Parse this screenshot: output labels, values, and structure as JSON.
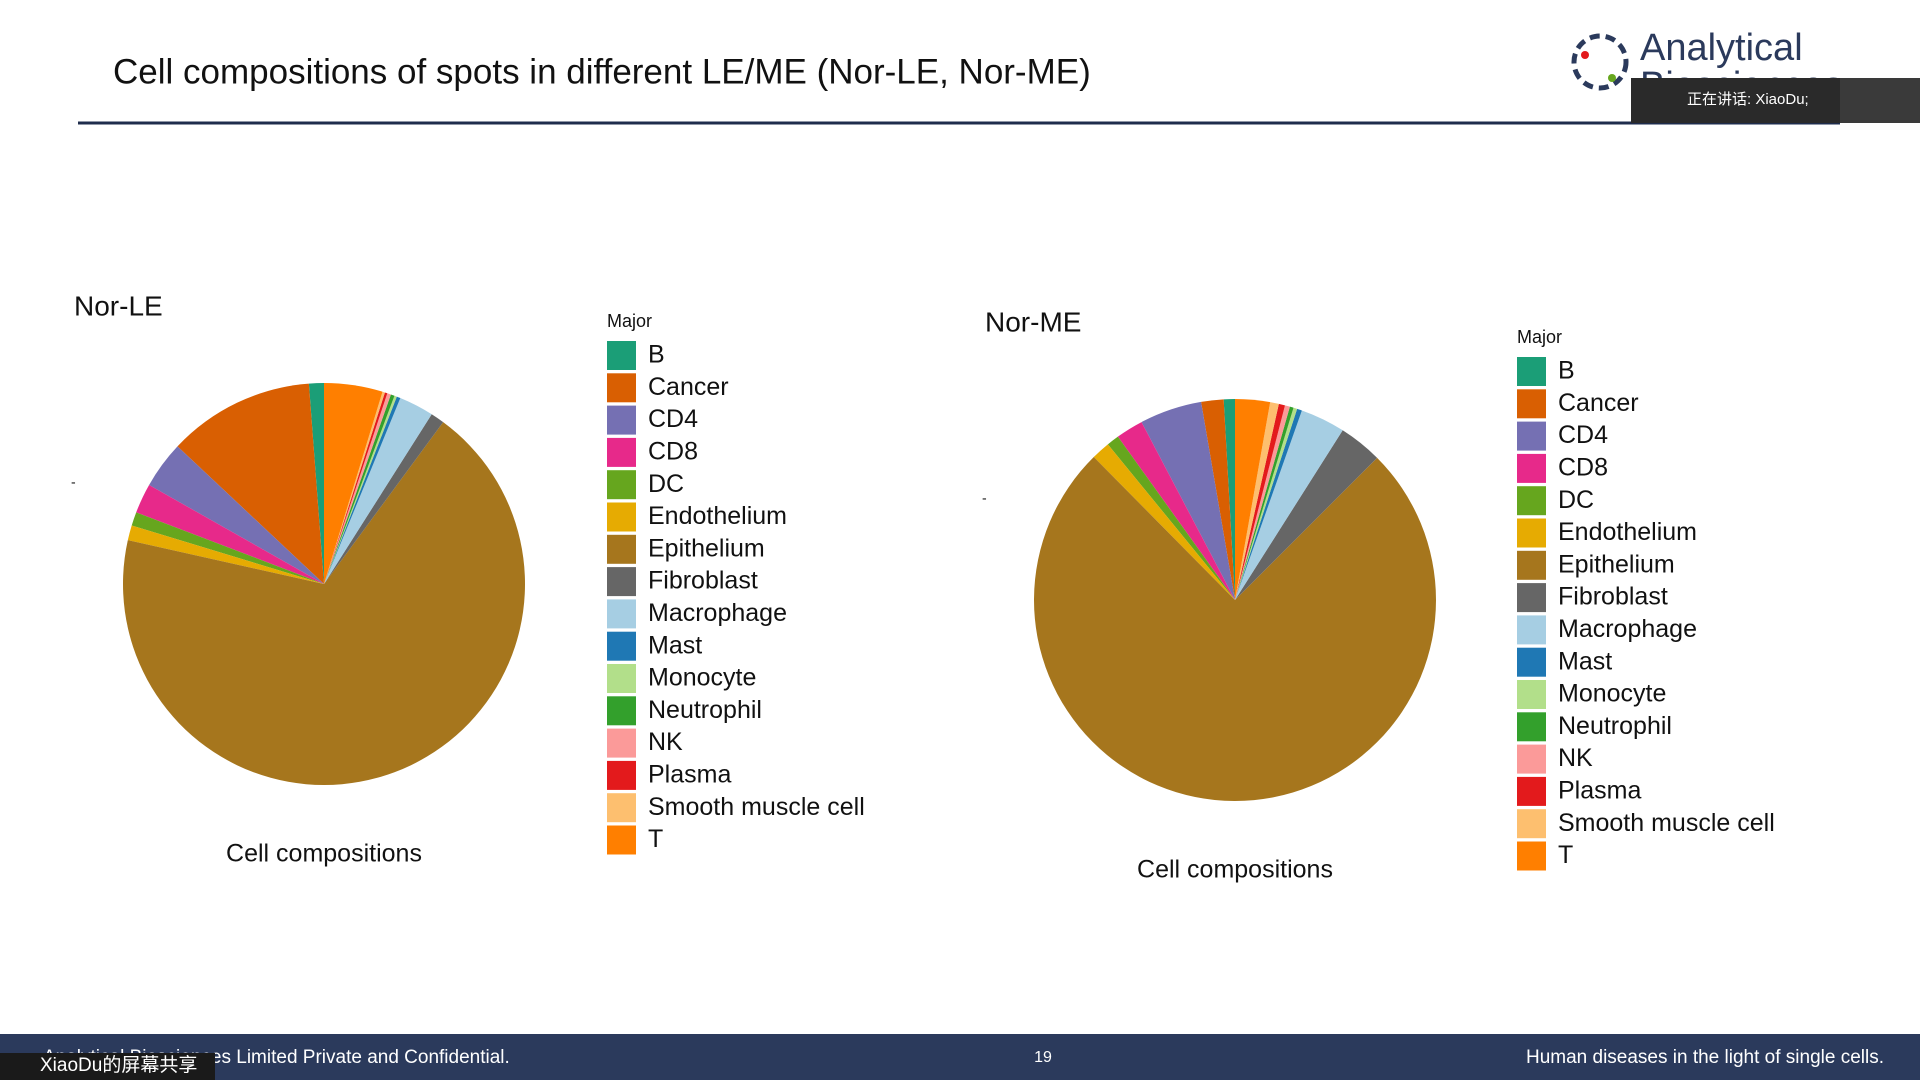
{
  "slide": {
    "title": "Cell compositions of spots in different LE/ME (Nor-LE, Nor-ME)",
    "logo": [
      "Analytical",
      "Biosciences"
    ],
    "speaking": "正在讲话: XiaoDu;",
    "footer_left": "Analytical Biosciences Limited Private and Confidential.",
    "page": "19",
    "footer_right": "Human diseases in the light of single cells.",
    "share_badge": "XiaoDu的屏幕共享"
  },
  "chart_data": [
    {
      "type": "pie",
      "title": "Nor-LE",
      "xlabel": "Cell compositions",
      "ylabel": "-",
      "legend_title": "Major",
      "categories": [
        "B",
        "Cancer",
        "CD4",
        "CD8",
        "DC",
        "Endothelium",
        "Epithelium",
        "Fibroblast",
        "Macrophage",
        "Mast",
        "Monocyte",
        "Neutrophil",
        "NK",
        "Plasma",
        "Smooth muscle cell",
        "T"
      ],
      "values": [
        1.2,
        11.8,
        3.8,
        2.4,
        1.1,
        1.2,
        68.4,
        1.1,
        2.8,
        0.3,
        0.2,
        0.3,
        0.3,
        0.2,
        0.2,
        4.7
      ],
      "colors": [
        "#1b9e77",
        "#d95f02",
        "#7570b3",
        "#e7298a",
        "#66a61e",
        "#e6ab02",
        "#a6761d",
        "#666666",
        "#a6cee3",
        "#1f78b4",
        "#b2df8a",
        "#33a02c",
        "#fb9a99",
        "#e31a1c",
        "#fdbf6f",
        "#ff7f00"
      ]
    },
    {
      "type": "pie",
      "title": "Nor-ME",
      "xlabel": "Cell compositions",
      "ylabel": "-",
      "legend_title": "Major",
      "categories": [
        "B",
        "Cancer",
        "CD4",
        "CD8",
        "DC",
        "Endothelium",
        "Epithelium",
        "Fibroblast",
        "Macrophage",
        "Mast",
        "Monocyte",
        "Neutrophil",
        "NK",
        "Plasma",
        "Smooth muscle cell",
        "T"
      ],
      "values": [
        0.9,
        1.8,
        5.0,
        2.2,
        1.0,
        1.5,
        75.1,
        3.5,
        3.6,
        0.4,
        0.3,
        0.3,
        0.4,
        0.5,
        0.7,
        2.8
      ],
      "colors": [
        "#1b9e77",
        "#d95f02",
        "#7570b3",
        "#e7298a",
        "#66a61e",
        "#e6ab02",
        "#a6761d",
        "#666666",
        "#a6cee3",
        "#1f78b4",
        "#b2df8a",
        "#33a02c",
        "#fb9a99",
        "#e31a1c",
        "#fdbf6f",
        "#ff7f00"
      ]
    }
  ]
}
